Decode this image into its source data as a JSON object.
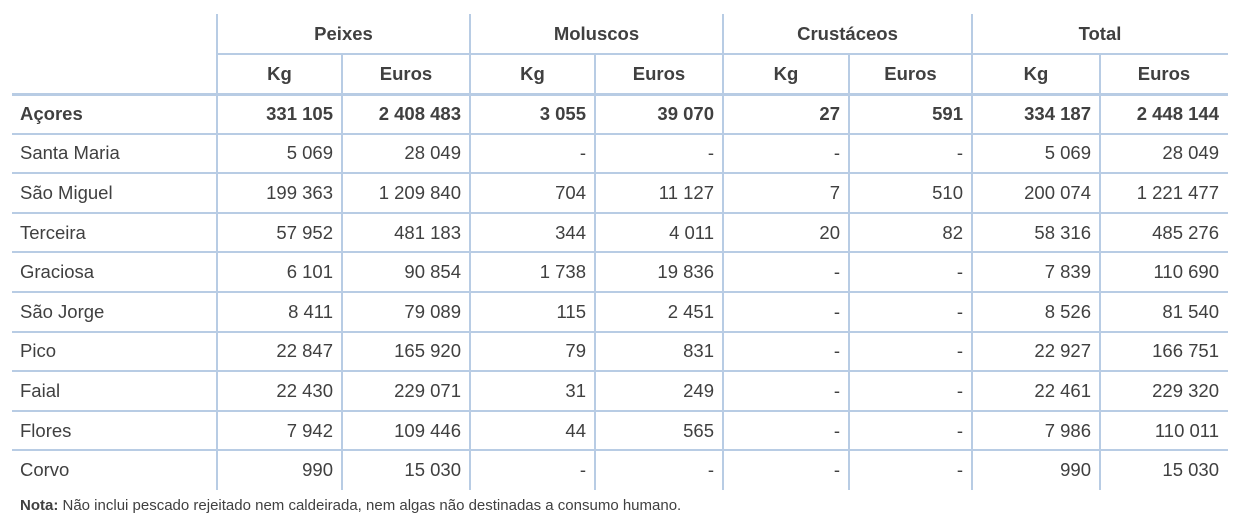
{
  "groups": [
    "Peixes",
    "Moluscos",
    "Crustáceos",
    "Total"
  ],
  "subheaders": [
    "Kg",
    "Euros",
    "Kg",
    "Euros",
    "Kg",
    "Euros",
    "Kg",
    "Euros"
  ],
  "rows": [
    {
      "name": "Açores",
      "bold": true,
      "values": [
        "331 105",
        "2 408 483",
        "3 055",
        "39 070",
        "27",
        "591",
        "334 187",
        "2 448 144"
      ]
    },
    {
      "name": "Santa Maria",
      "values": [
        "5 069",
        "28 049",
        "-",
        "-",
        "-",
        "-",
        "5 069",
        "28 049"
      ]
    },
    {
      "name": "São Miguel",
      "values": [
        "199 363",
        "1 209 840",
        "704",
        "11 127",
        "7",
        "510",
        "200 074",
        "1 221 477"
      ]
    },
    {
      "name": "Terceira",
      "values": [
        "57 952",
        "481 183",
        "344",
        "4 011",
        "20",
        "82",
        "58 316",
        "485 276"
      ]
    },
    {
      "name": "Graciosa",
      "values": [
        "6 101",
        "90 854",
        "1 738",
        "19 836",
        "-",
        "-",
        "7 839",
        "110 690"
      ]
    },
    {
      "name": "São Jorge",
      "values": [
        "8 411",
        "79 089",
        "115",
        "2 451",
        "-",
        "-",
        "8 526",
        "81 540"
      ]
    },
    {
      "name": "Pico",
      "values": [
        "22 847",
        "165 920",
        "79",
        "831",
        "-",
        "-",
        "22 927",
        "166 751"
      ]
    },
    {
      "name": "Faial",
      "values": [
        "22 430",
        "229 071",
        "31",
        "249",
        "-",
        "-",
        "22 461",
        "229 320"
      ]
    },
    {
      "name": "Flores",
      "values": [
        "7 942",
        "109 446",
        "44",
        "565",
        "-",
        "-",
        "7 986",
        "110 011"
      ]
    },
    {
      "name": "Corvo",
      "values": [
        "990",
        "15 030",
        "-",
        "-",
        "-",
        "-",
        "990",
        "15 030"
      ]
    }
  ],
  "note": {
    "label": "Nota:",
    "text": " Não inclui pescado rejeitado nem caldeirada, nem algas não destinadas a consumo humano."
  },
  "colors": {
    "grid": "#b8cce4",
    "text": "#404040"
  }
}
